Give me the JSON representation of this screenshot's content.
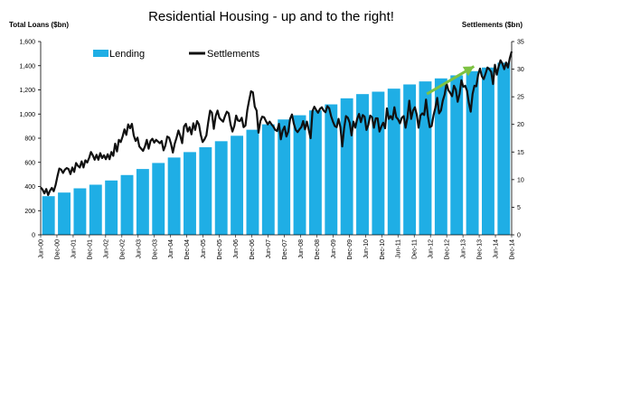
{
  "chart_data": {
    "type": "bar",
    "title": "Residential Housing - up and to the right!",
    "y_left_label": "Total Loans ($bn)",
    "y_right_label": "Settlements ($bn)",
    "y_left_ticks": [
      "0",
      "200",
      "400",
      "600",
      "800",
      "1,000",
      "1,200",
      "1,400",
      "1,600"
    ],
    "y_left_range": [
      0,
      1600
    ],
    "y_right_ticks": [
      "0",
      "5",
      "10",
      "15",
      "20",
      "25",
      "30",
      "35"
    ],
    "y_right_range": [
      0,
      35
    ],
    "x_tick_labels": [
      "Jun-00",
      "Dec-00",
      "Jun-01",
      "Dec-01",
      "Jun-02",
      "Dec-02",
      "Jun-03",
      "Dec-03",
      "Jun-04",
      "Dec-04",
      "Jun-05",
      "Dec-05",
      "Jun-06",
      "Dec-06",
      "Jun-07",
      "Dec-07",
      "Jun-08",
      "Dec-08",
      "Jun-09",
      "Dec-09",
      "Jun-10",
      "Dec-10",
      "Jun-11",
      "Dec-11",
      "Jun-12",
      "Dec-12",
      "Jun-13",
      "Dec-13",
      "Jun-14",
      "Dec-14"
    ],
    "legend": [
      {
        "name": "Lending",
        "color": "#1FAEE5",
        "kind": "bar"
      },
      {
        "name": "Settlements",
        "color": "#111111",
        "kind": "line"
      }
    ],
    "bar_series": {
      "name": "Lending",
      "color": "#1FAEE5",
      "axis": "left",
      "values": [
        320,
        350,
        385,
        415,
        450,
        495,
        545,
        595,
        640,
        685,
        725,
        775,
        820,
        870,
        915,
        955,
        990,
        1030,
        1080,
        1130,
        1165,
        1185,
        1210,
        1245,
        1270,
        1295,
        1320,
        1355,
        1385,
        1425
      ]
    },
    "line_series": {
      "name": "Settlements",
      "color": "#111111",
      "axis": "right",
      "values": [
        8.6,
        8.2,
        7.5,
        8.3,
        7.2,
        8.0,
        8.5,
        7.9,
        9.0,
        10.6,
        12.0,
        11.8,
        11.2,
        11.8,
        12.1,
        11.9,
        11.0,
        12.2,
        11.4,
        13.0,
        12.5,
        12.2,
        13.3,
        12.2,
        13.5,
        13.1,
        13.9,
        15.0,
        14.4,
        13.6,
        14.5,
        13.6,
        14.8,
        13.9,
        14.4,
        13.7,
        14.6,
        13.7,
        15.0,
        14.3,
        16.5,
        15.1,
        17.2,
        16.8,
        17.8,
        19.1,
        18.1,
        20.0,
        19.3,
        20.1,
        18.0,
        17.0,
        17.6,
        16.0,
        15.6,
        15.2,
        16.0,
        17.2,
        15.6,
        17.0,
        17.4,
        16.7,
        17.2,
        16.9,
        16.6,
        17.0,
        15.3,
        16.2,
        17.8,
        17.6,
        16.5,
        14.9,
        16.5,
        17.6,
        18.9,
        17.9,
        16.6,
        19.6,
        20.1,
        18.7,
        19.5,
        18.2,
        20.2,
        19.0,
        20.6,
        20.0,
        18.1,
        16.8,
        17.3,
        18.0,
        20.4,
        22.5,
        22.1,
        19.2,
        21.5,
        22.5,
        21.2,
        20.8,
        20.5,
        21.5,
        22.3,
        22.0,
        20.0,
        18.7,
        19.7,
        21.6,
        20.7,
        20.6,
        21.2,
        19.5,
        19.8,
        22.6,
        24.4,
        26.0,
        25.8,
        23.2,
        22.5,
        18.5,
        20.6,
        21.4,
        21.3,
        20.6,
        20.0,
        20.5,
        20.0,
        19.6,
        19.0,
        18.8,
        20.1,
        17.3,
        18.9,
        19.6,
        17.8,
        18.7,
        21.0,
        21.8,
        20.1,
        19.0,
        18.6,
        19.1,
        19.5,
        20.6,
        19.1,
        20.5,
        19.0,
        17.5,
        22.4,
        23.2,
        22.6,
        22.1,
        22.8,
        23.1,
        22.5,
        22.2,
        23.3,
        22.9,
        21.5,
        20.5,
        19.7,
        19.5,
        21.0,
        19.5,
        16.0,
        19.3,
        21.5,
        21.2,
        20.3,
        18.0,
        20.5,
        19.4,
        21.0,
        21.9,
        20.4,
        21.7,
        21.4,
        19.0,
        19.9,
        21.6,
        21.3,
        19.4,
        21.1,
        21.1,
        18.7,
        19.6,
        20.3,
        19.3,
        22.9,
        21.0,
        21.5,
        20.9,
        23.1,
        21.3,
        20.9,
        20.2,
        21.2,
        21.5,
        19.4,
        21.2,
        24.3,
        21.0,
        22.5,
        23.1,
        21.8,
        19.4,
        21.6,
        22.0,
        21.7,
        24.5,
        21.5,
        19.5,
        19.7,
        21.6,
        23.0,
        24.8,
        22.0,
        22.5,
        24.3,
        25.4,
        27.4,
        26.2,
        25.7,
        25.1,
        27.0,
        26.3,
        24.1,
        25.5,
        28.0,
        26.8,
        27.0,
        26.1,
        23.9,
        22.3,
        25.5,
        27.0,
        26.9,
        29.0,
        30.1,
        28.7,
        28.2,
        29.2,
        30.3,
        30.0,
        29.5,
        27.3,
        30.8,
        29.0,
        30.5,
        31.6,
        31.0,
        30.0,
        31.2,
        30.3,
        32.0,
        33.2
      ]
    },
    "annotation": {
      "kind": "arrow",
      "color": "#7DC242",
      "from_x_index": 24.1,
      "from_y_right": 25.5,
      "to_x_index": 27.1,
      "to_y_right": 30.5
    }
  }
}
